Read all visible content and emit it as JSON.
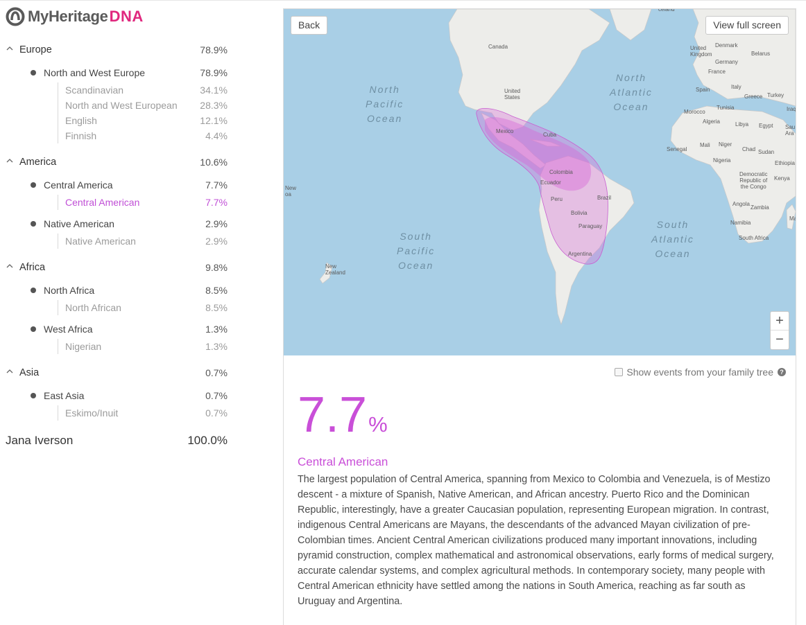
{
  "brand": {
    "name": "MyHeritage",
    "suffix": "DNA"
  },
  "sidebar": {
    "regions": [
      {
        "name": "Europe",
        "percent": "78.9%",
        "subregions": [
          {
            "name": "North and West Europe",
            "percent": "78.9%",
            "ethnicities": [
              {
                "name": "Scandinavian",
                "percent": "34.1%"
              },
              {
                "name": "North and West European",
                "percent": "28.3%"
              },
              {
                "name": "English",
                "percent": "12.1%"
              },
              {
                "name": "Finnish",
                "percent": "4.4%"
              }
            ]
          }
        ]
      },
      {
        "name": "America",
        "percent": "10.6%",
        "subregions": [
          {
            "name": "Central America",
            "percent": "7.7%",
            "ethnicities": [
              {
                "name": "Central American",
                "percent": "7.7%",
                "active": true
              }
            ]
          },
          {
            "name": "Native American",
            "percent": "2.9%",
            "ethnicities": [
              {
                "name": "Native American",
                "percent": "2.9%"
              }
            ]
          }
        ]
      },
      {
        "name": "Africa",
        "percent": "9.8%",
        "subregions": [
          {
            "name": "North Africa",
            "percent": "8.5%",
            "ethnicities": [
              {
                "name": "North African",
                "percent": "8.5%"
              }
            ]
          },
          {
            "name": "West Africa",
            "percent": "1.3%",
            "ethnicities": [
              {
                "name": "Nigerian",
                "percent": "1.3%"
              }
            ]
          }
        ]
      },
      {
        "name": "Asia",
        "percent": "0.7%",
        "subregions": [
          {
            "name": "East Asia",
            "percent": "0.7%",
            "ethnicities": [
              {
                "name": "Eskimo/Inuit",
                "percent": "0.7%"
              }
            ]
          }
        ]
      }
    ],
    "total": {
      "name": "Jana Iverson",
      "percent": "100.0%"
    }
  },
  "map": {
    "back_label": "Back",
    "fullscreen_label": "View full screen",
    "zoom_in": "+",
    "zoom_out": "−",
    "oceans": {
      "north_pacific": "North\nPacific\nOcean",
      "north_atlantic": "North\nAtlantic\nOcean",
      "south_pacific": "South\nPacific\nOcean",
      "south_atlantic": "South\nAtlantic\nOcean"
    },
    "places": {
      "canada": "Canada",
      "united_states": "United\nStates",
      "mexico": "Mexico",
      "cuba": "Cuba",
      "colombia": "Colombia",
      "ecuador": "Ecuador",
      "peru": "Peru",
      "brazil": "Brazil",
      "bolivia": "Bolivia",
      "paraguay": "Paraguay",
      "argentina": "Argentina",
      "new_zealand": "New\nZealand",
      "united_kingdom": "United\nKingdom",
      "denmark": "Denmark",
      "belarus": "Belarus",
      "germany": "Germany",
      "france": "France",
      "spain": "Spain",
      "italy": "Italy",
      "greece": "Greece",
      "turkey": "Turkey",
      "morocco": "Morocco",
      "tunisia": "Tunisia",
      "algeria": "Algeria",
      "libya": "Libya",
      "egypt": "Egypt",
      "mali": "Mali",
      "niger": "Niger",
      "chad": "Chad",
      "sudan": "Sudan",
      "senegal": "Senegal",
      "nigeria": "Nigeria",
      "ethiopia": "Ethiopia",
      "kenya": "Kenya",
      "drc": "Democratic\nRepublic of\nthe Congo",
      "angola": "Angola",
      "zambia": "Zambia",
      "namibia": "Namibia",
      "south_africa": "South Africa",
      "iraq": "Iraq",
      "saudi": "Sau\nAra",
      "iceland": "celand",
      "new_left": "New\noa",
      "mada": "Mada"
    },
    "highlight_color": "#d86bd8"
  },
  "details": {
    "show_events_label": "Show events from your family tree",
    "help_icon": "?",
    "percent_value": "7.7",
    "percent_symbol": "%",
    "ethnicity_title": "Central American",
    "description": "The largest population of Central America, spanning from Mexico to Colombia and Venezuela, is of Mestizo descent - a mixture of Spanish, Native American, and African ancestry. Puerto Rico and the Dominican Republic, interestingly, have a greater Caucasian population, representing European migration. In contrast, indigenous Central Americans are Mayans, the descendants of the advanced Mayan civilization of pre-Colombian times. Ancient Central American civilizations produced many important innovations, including pyramid construction, complex mathematical and astronomical observations, early forms of medical surgery, accurate calendar systems, and complex agricultural methods. In contemporary society, many people with Central American ethnicity have settled among the nations in South America, reaching as far south as Uruguay and Argentina."
  }
}
